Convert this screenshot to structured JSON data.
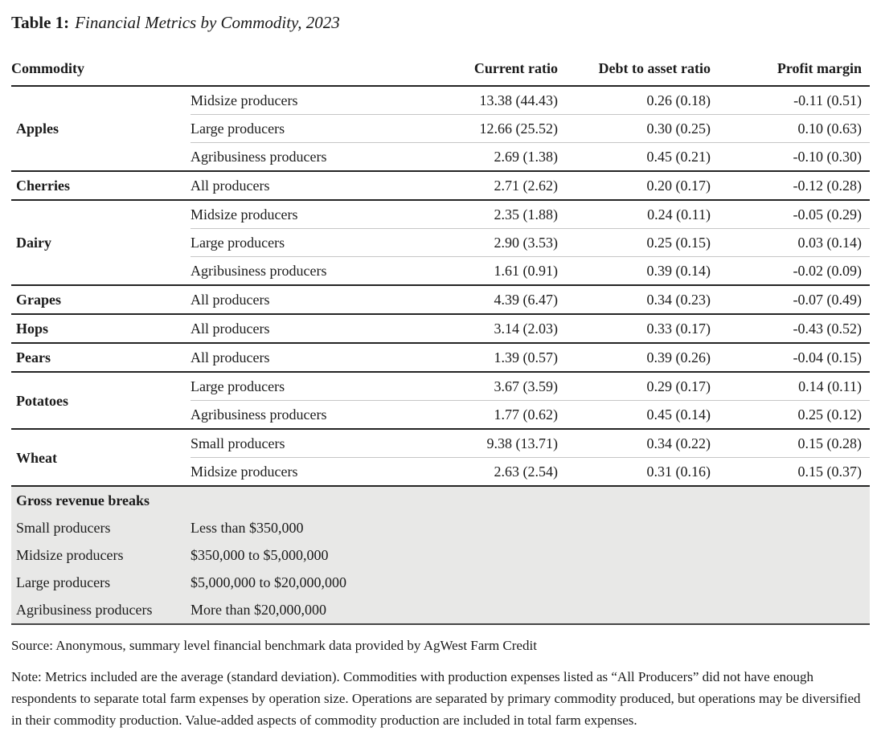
{
  "caption": {
    "label": "Table 1:",
    "text": "Financial Metrics by Commodity, 2023"
  },
  "table": {
    "headers": [
      "Commodity",
      "Current ratio",
      "Debt to asset ratio",
      "Profit margin"
    ],
    "groups": [
      {
        "commodity": "Apples",
        "rows": [
          {
            "producer": "Midsize producers",
            "current": "13.38 (44.43)",
            "debt": "0.26 (0.18)",
            "profit": "-0.11 (0.51)"
          },
          {
            "producer": "Large producers",
            "current": "12.66 (25.52)",
            "debt": "0.30 (0.25)",
            "profit": "0.10 (0.63)"
          },
          {
            "producer": "Agribusiness producers",
            "current": "2.69 (1.38)",
            "debt": "0.45 (0.21)",
            "profit": "-0.10 (0.30)"
          }
        ]
      },
      {
        "commodity": "Cherries",
        "rows": [
          {
            "producer": "All producers",
            "current": "2.71 (2.62)",
            "debt": "0.20 (0.17)",
            "profit": "-0.12 (0.28)"
          }
        ]
      },
      {
        "commodity": "Dairy",
        "rows": [
          {
            "producer": "Midsize producers",
            "current": "2.35 (1.88)",
            "debt": "0.24 (0.11)",
            "profit": "-0.05 (0.29)"
          },
          {
            "producer": "Large producers",
            "current": "2.90 (3.53)",
            "debt": "0.25 (0.15)",
            "profit": "0.03 (0.14)"
          },
          {
            "producer": "Agribusiness producers",
            "current": "1.61 (0.91)",
            "debt": "0.39 (0.14)",
            "profit": "-0.02 (0.09)"
          }
        ]
      },
      {
        "commodity": "Grapes",
        "rows": [
          {
            "producer": "All producers",
            "current": "4.39 (6.47)",
            "debt": "0.34 (0.23)",
            "profit": "-0.07 (0.49)"
          }
        ]
      },
      {
        "commodity": "Hops",
        "rows": [
          {
            "producer": "All producers",
            "current": "3.14 (2.03)",
            "debt": "0.33 (0.17)",
            "profit": "-0.43 (0.52)"
          }
        ]
      },
      {
        "commodity": "Pears",
        "rows": [
          {
            "producer": "All producers",
            "current": "1.39 (0.57)",
            "debt": "0.39 (0.26)",
            "profit": "-0.04 (0.15)"
          }
        ]
      },
      {
        "commodity": "Potatoes",
        "rows": [
          {
            "producer": "Large producers",
            "current": "3.67 (3.59)",
            "debt": "0.29 (0.17)",
            "profit": "0.14 (0.11)"
          },
          {
            "producer": "Agribusiness producers",
            "current": "1.77 (0.62)",
            "debt": "0.45 (0.14)",
            "profit": "0.25 (0.12)"
          }
        ]
      },
      {
        "commodity": "Wheat",
        "rows": [
          {
            "producer": "Small producers",
            "current": "9.38 (13.71)",
            "debt": "0.34 (0.22)",
            "profit": "0.15 (0.28)"
          },
          {
            "producer": "Midsize producers",
            "current": "2.63 (2.54)",
            "debt": "0.31 (0.16)",
            "profit": "0.15 (0.37)"
          }
        ]
      }
    ],
    "revenue_breaks": {
      "header": "Gross revenue breaks",
      "rows": [
        {
          "label": "Small producers",
          "range": "Less than $350,000"
        },
        {
          "label": "Midsize producers",
          "range": "$350,000 to $5,000,000"
        },
        {
          "label": "Large producers",
          "range": "$5,000,000 to $20,000,000"
        },
        {
          "label": "Agribusiness producers",
          "range": "More than $20,000,000"
        }
      ]
    }
  },
  "footer": {
    "source": "Source: Anonymous, summary level financial benchmark data provided by AgWest Farm Credit",
    "note": "Note: Metrics included are the average (standard deviation). Commodities with production expenses listed as “All Producers” did not have enough respondents to separate total farm expenses by operation size. Operations are separated by primary commodity produced, but operations may be diversified in their commodity production. Value-added aspects of commodity production are included in total farm expenses."
  }
}
